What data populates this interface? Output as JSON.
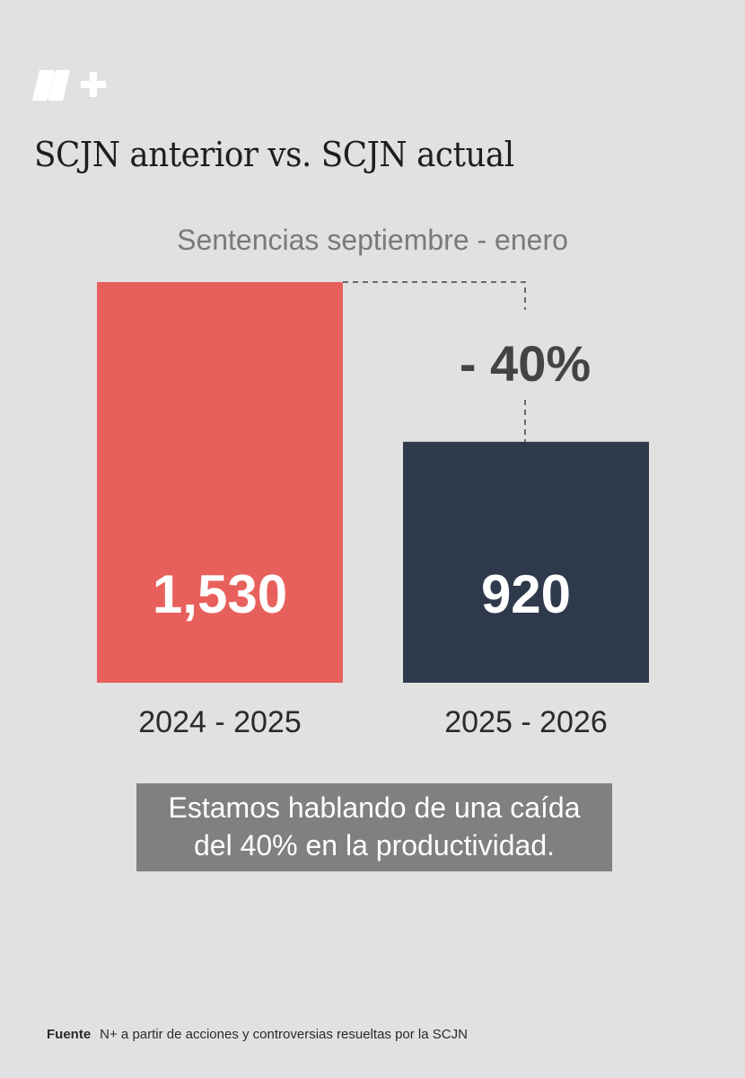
{
  "brand": {
    "logo": "N+",
    "logo_icon": "nplus-logo-icon"
  },
  "header": {
    "title": "SCJN anterior vs. SCJN actual",
    "subtitle": "Sentencias septiembre - enero"
  },
  "chart_data": {
    "type": "bar",
    "categories": [
      "2024 - 2025",
      "2025 - 2026"
    ],
    "values": [
      1530,
      920
    ],
    "value_labels": [
      "1,530",
      "920"
    ],
    "colors": [
      "#e8605c",
      "#2e3a4b"
    ],
    "ylim": [
      0,
      1530
    ],
    "annotation": "- 40%",
    "grid": false,
    "legend": "none"
  },
  "caption": {
    "line1": "Estamos hablando de una caída",
    "line2": "del 40% en la productividad."
  },
  "footer": {
    "source_label": "Fuente",
    "source_text": "N+ a partir de acciones y controversias resueltas por la SCJN"
  }
}
